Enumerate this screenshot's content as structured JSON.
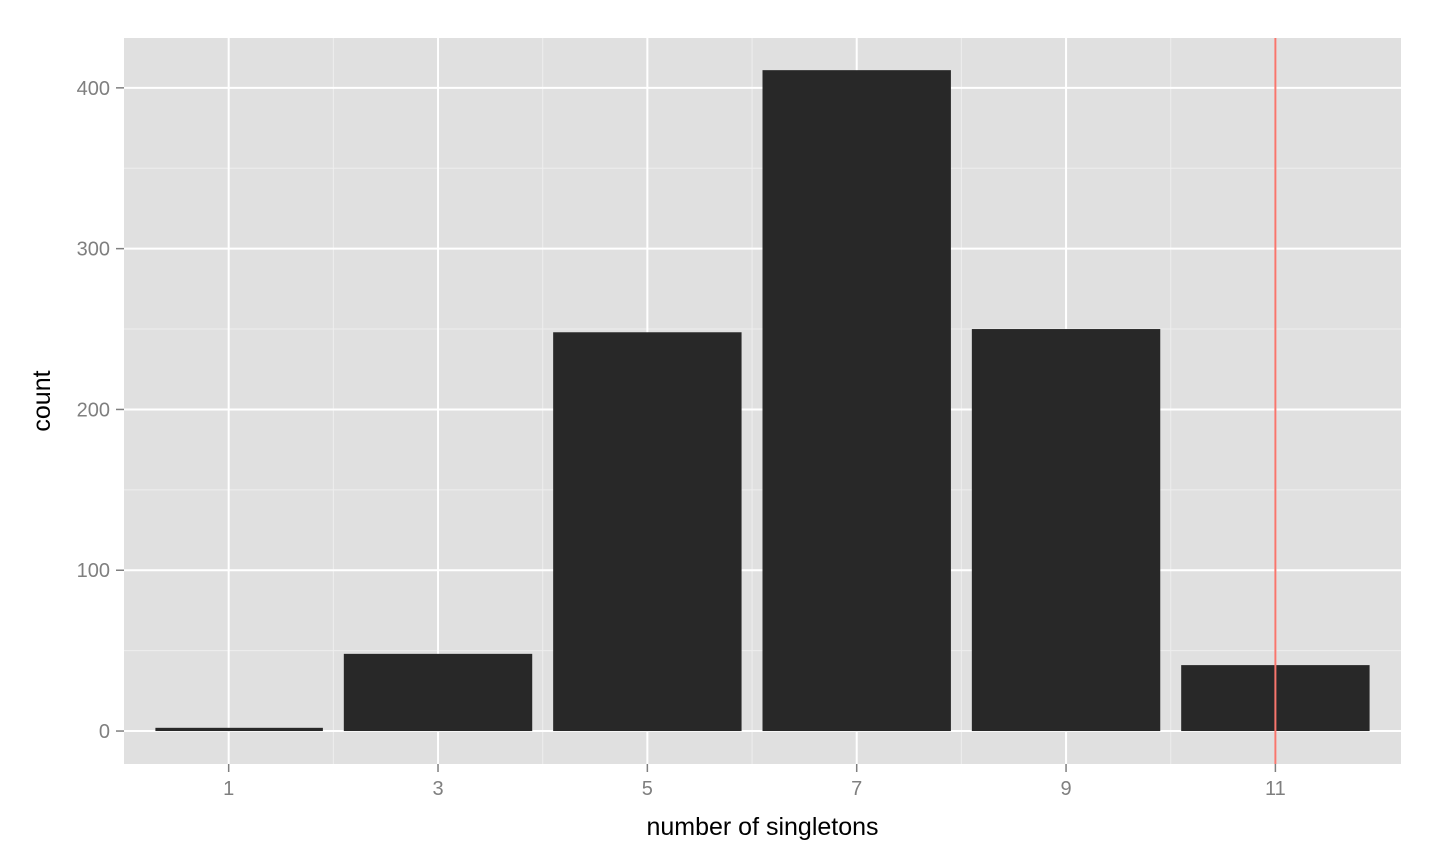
{
  "chart_data": {
    "type": "bar",
    "title": "",
    "xlabel": "number of singletons",
    "ylabel": "count",
    "x_ticks": [
      1,
      3,
      5,
      7,
      9,
      11
    ],
    "x_tick_labels": [
      "1",
      "3",
      "5",
      "7",
      "9",
      "11"
    ],
    "y_ticks": [
      0,
      100,
      200,
      300,
      400
    ],
    "y_tick_labels": [
      "0",
      "100",
      "200",
      "300",
      "400"
    ],
    "xlim": [
      0,
      12.2
    ],
    "ylim": [
      -20.5,
      431
    ],
    "bins": [
      {
        "x_start": 0.2,
        "x_end": 2.0,
        "count": 2
      },
      {
        "x_start": 2.0,
        "x_end": 4.0,
        "count": 48
      },
      {
        "x_start": 4.0,
        "x_end": 6.0,
        "count": 248
      },
      {
        "x_start": 6.0,
        "x_end": 8.0,
        "count": 411
      },
      {
        "x_start": 8.0,
        "x_end": 10.0,
        "count": 250
      },
      {
        "x_start": 10.0,
        "x_end": 12.0,
        "count": 41
      }
    ],
    "vline": {
      "x": 11,
      "color": "#f8766d"
    },
    "grid": true,
    "colors": {
      "panel_background": "#e0e0e0",
      "grid_major": "#ffffff",
      "grid_minor": "#eeeeee",
      "bar_fill": "#282828",
      "tick_label": "#7f7f7f",
      "axis_title": "#000000"
    }
  }
}
